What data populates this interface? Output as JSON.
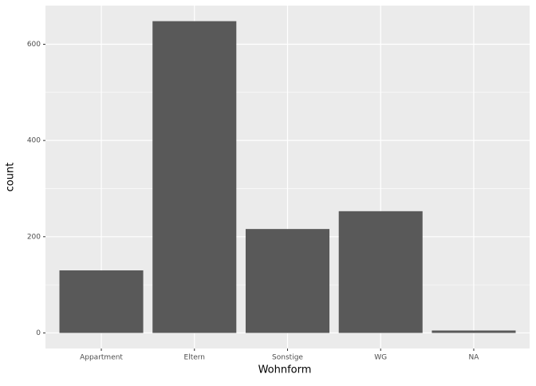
{
  "chart_data": {
    "type": "bar",
    "x_label": "Wohnform",
    "y_label": "count",
    "categories": [
      "Appartment",
      "Eltern",
      "Sonstige",
      "WG",
      "NA"
    ],
    "values": [
      130,
      648,
      216,
      253,
      5
    ],
    "color": "#595959",
    "ylim": [
      -32.4,
      680.4
    ],
    "yticks": [
      0,
      200,
      400,
      600
    ],
    "minor_yticks": [
      100,
      300,
      500
    ],
    "grid": true
  }
}
